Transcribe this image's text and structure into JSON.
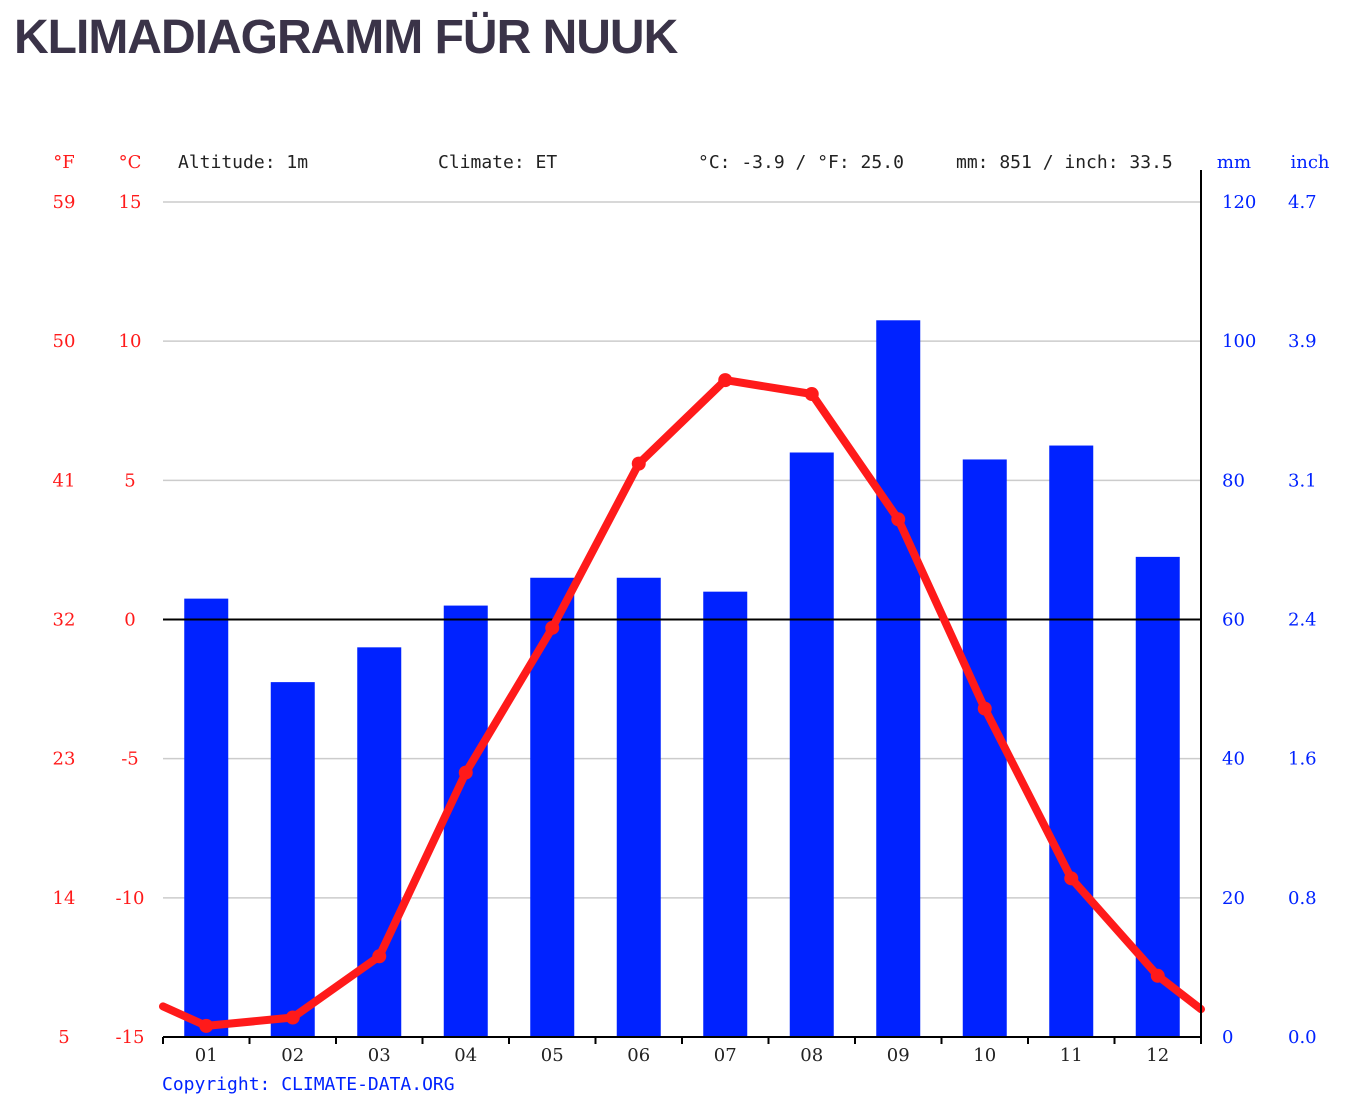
{
  "page_title": "KLIMADIAGRAMM FÜR NUUK",
  "colors": {
    "temperature": "#ff1a1a",
    "precipitation": "#0022ff",
    "title": "#3a3348",
    "grid": "#cccccc",
    "axis": "#000000"
  },
  "chart_data": {
    "type": "bar",
    "title": "",
    "info": {
      "altitude": "Altitude: 1m",
      "climate": "Climate: ET",
      "temp_avg": "°C: -3.9 / °F: 25.0",
      "precip_total": "mm: 851 / inch: 33.5"
    },
    "axes": {
      "left_f_unit": "°F",
      "left_c_unit": "°C",
      "right_mm_unit": "mm",
      "right_inch_unit": "inch",
      "c_ticks": [
        "15",
        "10",
        "5",
        "0",
        "-5",
        "-10",
        "-15"
      ],
      "f_ticks": [
        "59",
        "50",
        "41",
        "32",
        "23",
        "14",
        "5"
      ],
      "mm_ticks": [
        "120",
        "100",
        "80",
        "60",
        "40",
        "20",
        "0"
      ],
      "inch_ticks": [
        "4.7",
        "3.9",
        "3.1",
        "2.4",
        "1.6",
        "0.8",
        "0.0"
      ],
      "c_range": [
        -15,
        15
      ],
      "mm_range": [
        0,
        120
      ]
    },
    "categories": [
      "01",
      "02",
      "03",
      "04",
      "05",
      "06",
      "07",
      "08",
      "09",
      "10",
      "11",
      "12"
    ],
    "series": [
      {
        "type": "bar",
        "unit": "mm",
        "values": [
          63,
          51,
          56,
          62,
          66,
          66,
          64,
          84,
          103,
          83,
          85,
          69
        ]
      },
      {
        "type": "line",
        "unit": "°C",
        "values": [
          -14.6,
          -14.3,
          -12.1,
          -5.5,
          -0.3,
          5.6,
          8.6,
          8.1,
          3.6,
          -3.2,
          -9.3,
          -12.8
        ],
        "edge_start": -13.9,
        "edge_end": -14.0
      }
    ],
    "grid": true,
    "copyright": "Copyright: CLIMATE-DATA.ORG"
  }
}
